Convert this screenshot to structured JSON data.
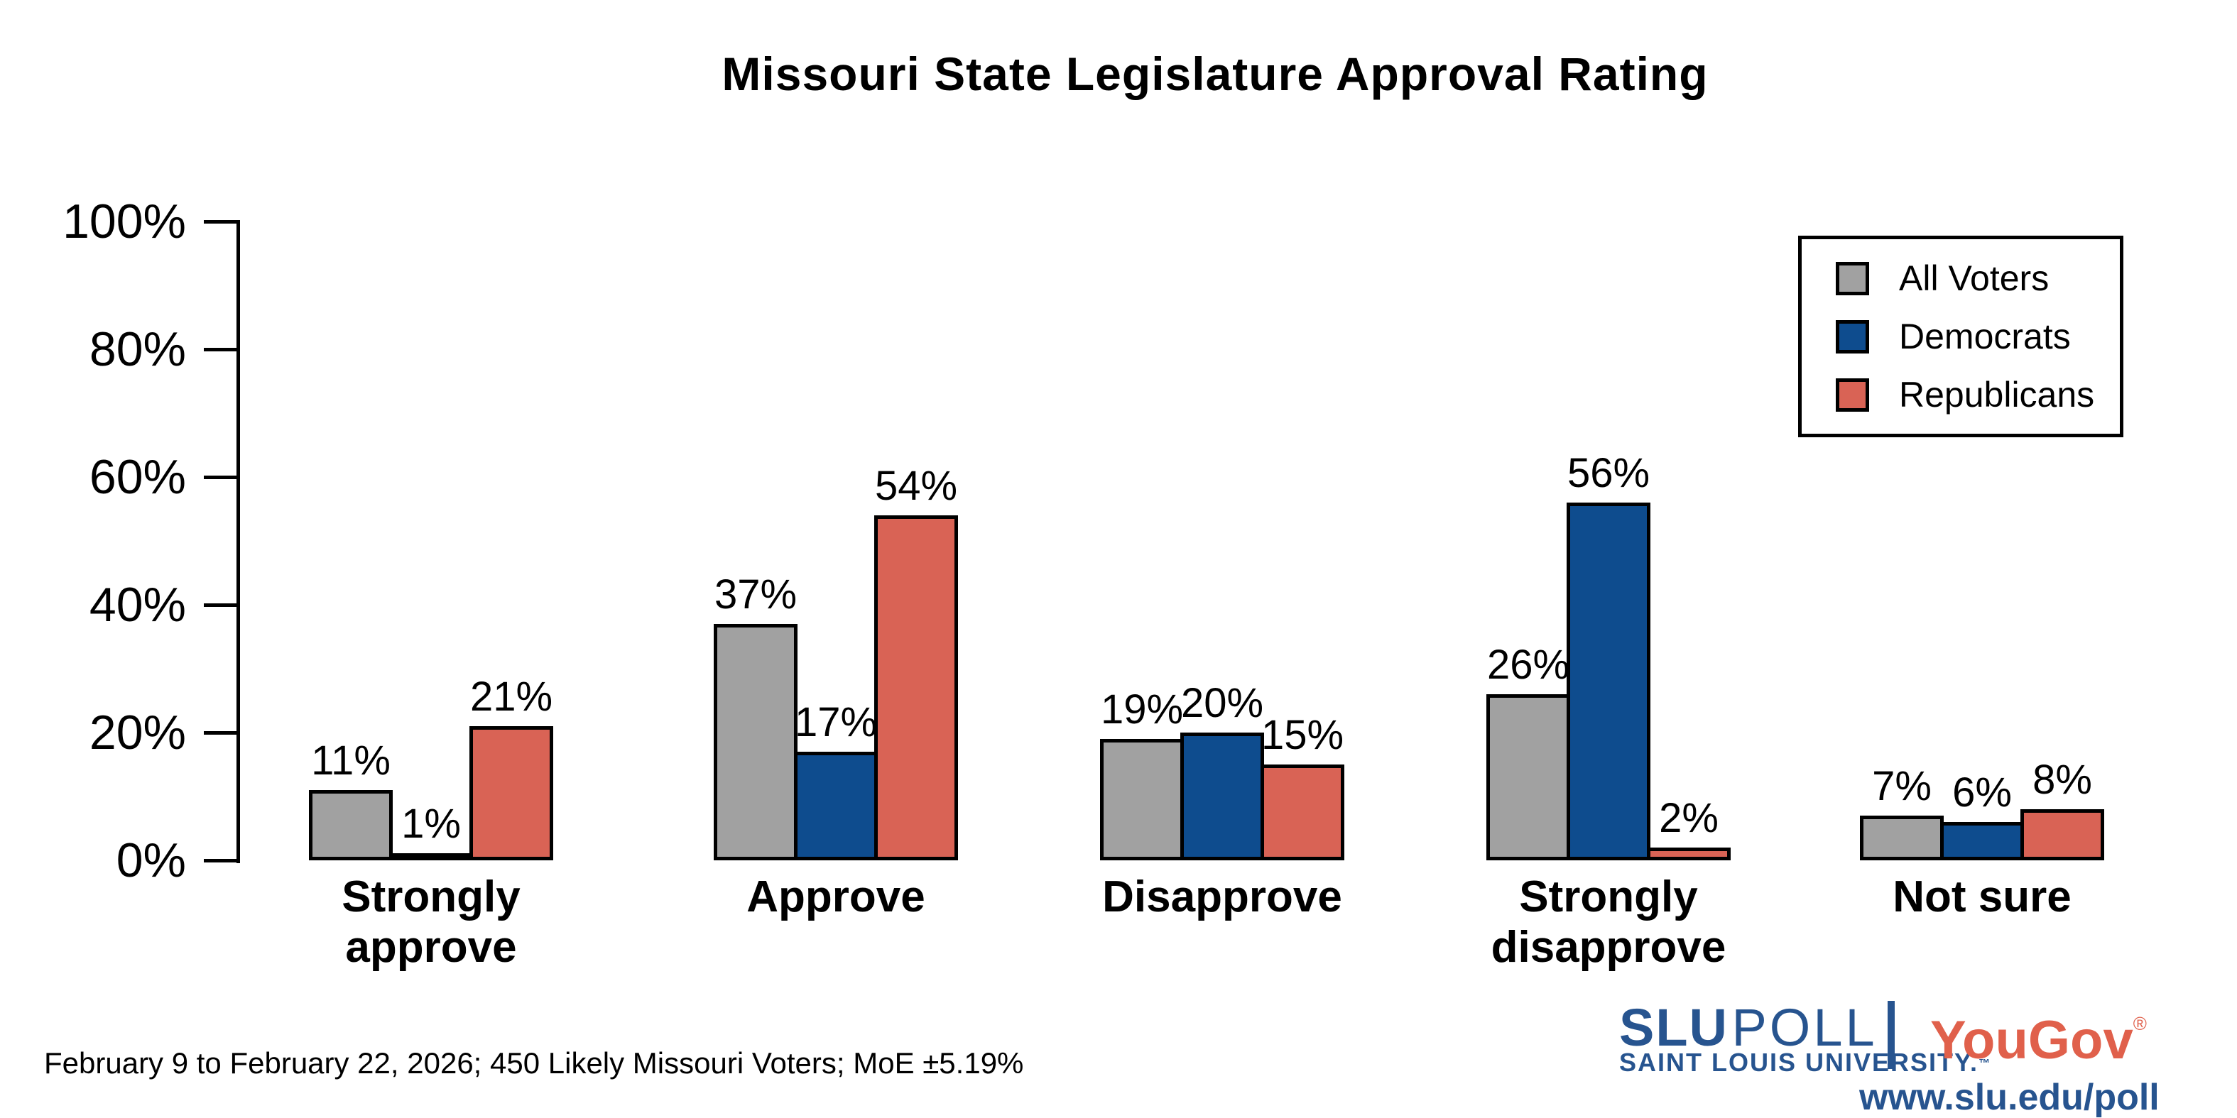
{
  "chart_data": {
    "type": "bar",
    "title": "Missouri State Legislature Approval Rating",
    "categories": [
      "Strongly approve",
      "Approve",
      "Disapprove",
      "Strongly disapprove",
      "Not sure"
    ],
    "series": [
      {
        "name": "All Voters",
        "color": "#a1a1a1",
        "values": [
          11,
          37,
          19,
          26,
          7
        ]
      },
      {
        "name": "Democrats",
        "color": "#0e4c8e",
        "values": [
          1,
          17,
          20,
          56,
          6
        ]
      },
      {
        "name": "Republicans",
        "color": "#d96355",
        "values": [
          21,
          54,
          15,
          2,
          8
        ]
      }
    ],
    "value_labels": [
      [
        "11%",
        "37%",
        "19%",
        "26%",
        "7%"
      ],
      [
        "1%",
        "17%",
        "20%",
        "56%",
        "6%"
      ],
      [
        "21%",
        "54%",
        "15%",
        "2%",
        "8%"
      ]
    ],
    "value_suffix": "%",
    "xlabel": "",
    "ylabel": "",
    "ylim": [
      0,
      100
    ],
    "yticks": [
      0,
      20,
      40,
      60,
      80,
      100
    ],
    "ytick_labels": [
      "0%",
      "20%",
      "40%",
      "60%",
      "80%",
      "100%"
    ],
    "grid": false,
    "legend_position": "upper right",
    "bar_outline_color": "#000000"
  },
  "footer": {
    "note": "February 9 to February 22, 2026; 450 Likely Missouri Voters; MoE ±5.19%"
  },
  "branding": {
    "slu_word": "SLU",
    "poll_word": "POLL",
    "slu_subtitle": "SAINT LOUIS UNIVERSITY.",
    "slu_trademark": "™",
    "divider": "|",
    "yougov_word": "YouGov",
    "yougov_registered": "®",
    "url": "www.slu.edu/poll",
    "slu_blue": "#27548f",
    "yougov_red": "#e0604b"
  }
}
